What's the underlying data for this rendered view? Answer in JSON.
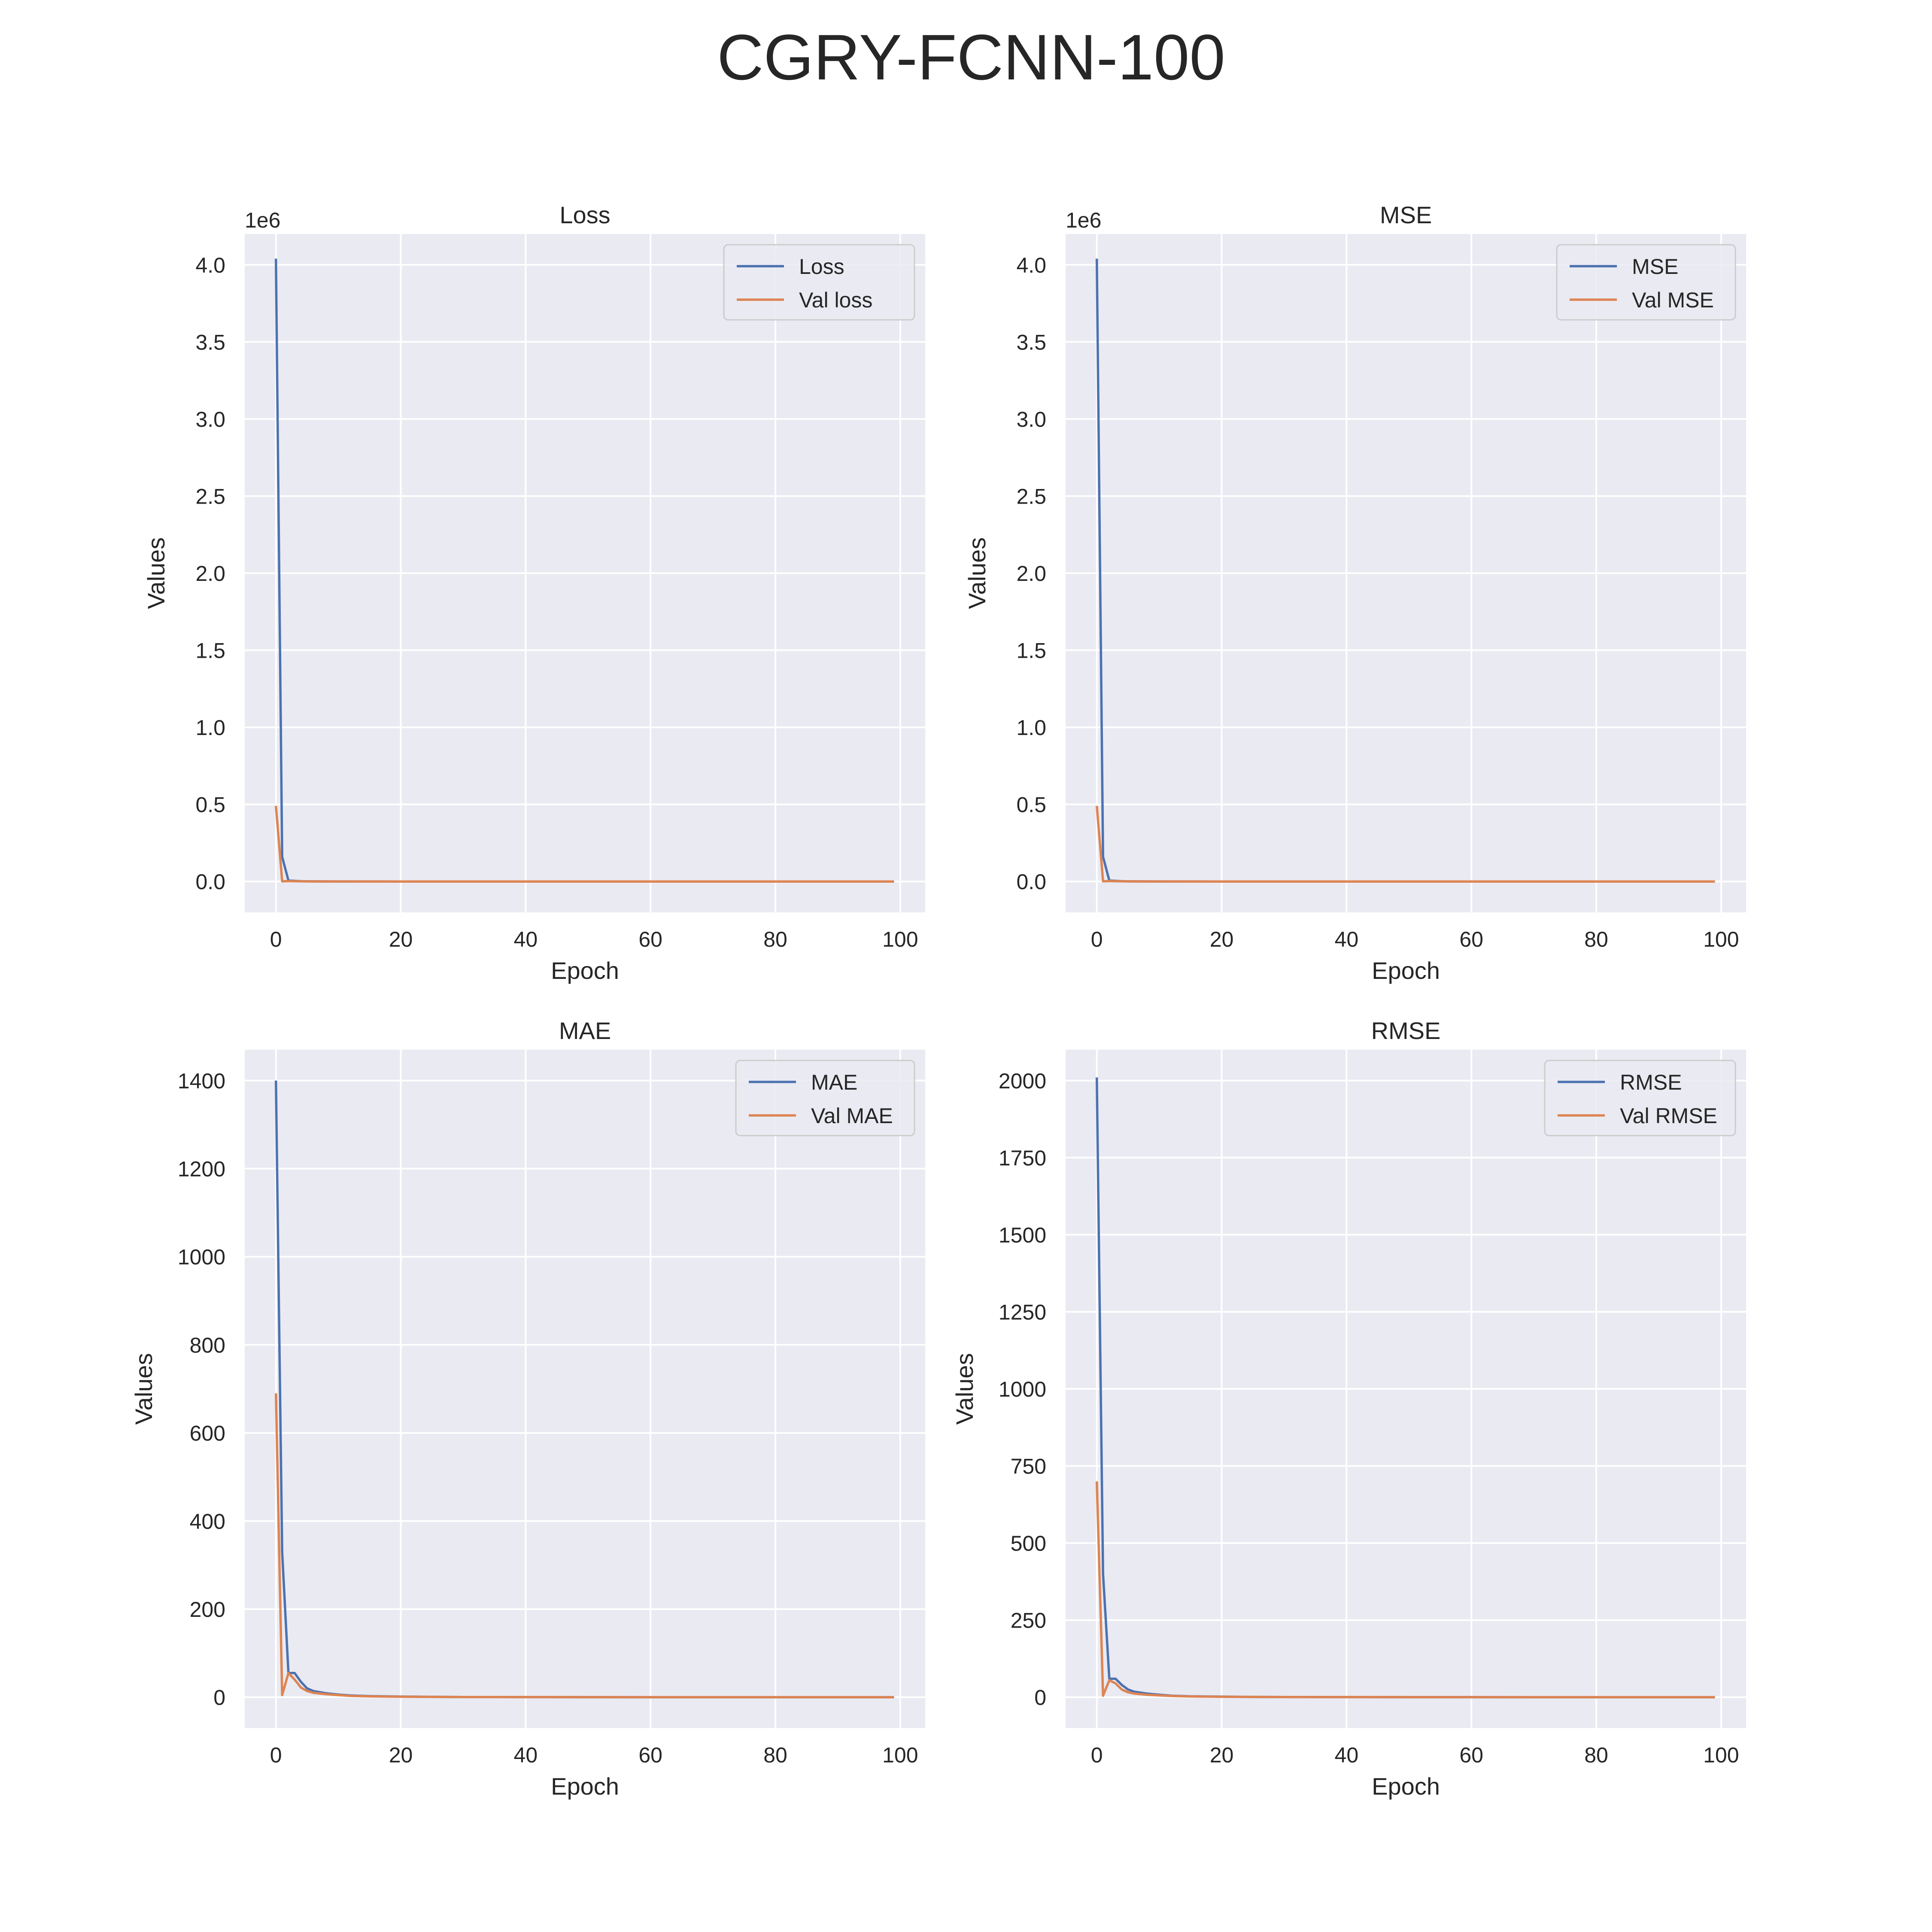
{
  "figure": {
    "title": "CGRY-FCNN-100"
  },
  "colors": {
    "series1": "#4c72b0",
    "series2": "#dd8452",
    "panel_bg": "#eaeaf2",
    "grid": "#ffffff",
    "text": "#262626"
  },
  "chart_data": [
    {
      "type": "line",
      "title": "Loss",
      "xlabel": "Epoch",
      "ylabel": "Values",
      "offset_text": "1e6",
      "xlim": [
        -5,
        104
      ],
      "ylim": [
        -0.2,
        4.2
      ],
      "xticks": [
        0,
        20,
        40,
        60,
        80,
        100
      ],
      "xtick_labels": [
        "0",
        "20",
        "40",
        "60",
        "80",
        "100"
      ],
      "yticks": [
        0,
        0.5,
        1.0,
        1.5,
        2.0,
        2.5,
        3.0,
        3.5,
        4.0
      ],
      "ytick_labels": [
        "0.0",
        "0.5",
        "1.0",
        "1.5",
        "2.0",
        "2.5",
        "3.0",
        "3.5",
        "4.0"
      ],
      "grid": true,
      "legend": "upper right",
      "x": [
        0,
        1,
        2,
        3,
        4,
        5,
        6,
        8,
        10,
        15,
        20,
        30,
        40,
        50,
        60,
        70,
        80,
        90,
        99
      ],
      "series": [
        {
          "name": "Loss",
          "values": [
            4.04,
            0.16,
            0.006,
            0.004,
            0.002,
            0.001,
            0.0007,
            0.0004,
            0.0002,
            0.0001,
            0,
            0,
            0,
            0,
            0,
            0,
            0,
            0,
            0
          ]
        },
        {
          "name": "Val loss",
          "values": [
            0.49,
            0.001,
            0.003,
            0.002,
            0.001,
            0.0006,
            0.0004,
            0.0002,
            0.0001,
            0,
            0,
            0,
            0,
            0,
            0,
            0,
            0,
            0,
            0
          ]
        }
      ]
    },
    {
      "type": "line",
      "title": "MSE",
      "xlabel": "Epoch",
      "ylabel": "Values",
      "offset_text": "1e6",
      "xlim": [
        -5,
        104
      ],
      "ylim": [
        -0.2,
        4.2
      ],
      "xticks": [
        0,
        20,
        40,
        60,
        80,
        100
      ],
      "xtick_labels": [
        "0",
        "20",
        "40",
        "60",
        "80",
        "100"
      ],
      "yticks": [
        0,
        0.5,
        1.0,
        1.5,
        2.0,
        2.5,
        3.0,
        3.5,
        4.0
      ],
      "ytick_labels": [
        "0.0",
        "0.5",
        "1.0",
        "1.5",
        "2.0",
        "2.5",
        "3.0",
        "3.5",
        "4.0"
      ],
      "grid": true,
      "legend": "upper right",
      "x": [
        0,
        1,
        2,
        3,
        4,
        5,
        6,
        8,
        10,
        15,
        20,
        30,
        40,
        50,
        60,
        70,
        80,
        90,
        99
      ],
      "series": [
        {
          "name": "MSE",
          "values": [
            4.04,
            0.16,
            0.006,
            0.004,
            0.002,
            0.001,
            0.0007,
            0.0004,
            0.0002,
            0.0001,
            0,
            0,
            0,
            0,
            0,
            0,
            0,
            0,
            0
          ]
        },
        {
          "name": "Val MSE",
          "values": [
            0.49,
            0.001,
            0.003,
            0.002,
            0.001,
            0.0006,
            0.0004,
            0.0002,
            0.0001,
            0,
            0,
            0,
            0,
            0,
            0,
            0,
            0,
            0,
            0
          ]
        }
      ]
    },
    {
      "type": "line",
      "title": "MAE",
      "xlabel": "Epoch",
      "ylabel": "Values",
      "offset_text": "",
      "xlim": [
        -5,
        104
      ],
      "ylim": [
        -70,
        1470
      ],
      "xticks": [
        0,
        20,
        40,
        60,
        80,
        100
      ],
      "xtick_labels": [
        "0",
        "20",
        "40",
        "60",
        "80",
        "100"
      ],
      "yticks": [
        0,
        200,
        400,
        600,
        800,
        1000,
        1200,
        1400
      ],
      "ytick_labels": [
        "0",
        "200",
        "400",
        "600",
        "800",
        "1000",
        "1200",
        "1400"
      ],
      "grid": true,
      "legend": "upper right",
      "x": [
        0,
        1,
        2,
        3,
        4,
        5,
        6,
        8,
        10,
        12,
        15,
        20,
        25,
        30,
        40,
        50,
        60,
        70,
        80,
        90,
        99
      ],
      "series": [
        {
          "name": "MAE",
          "values": [
            1400,
            330,
            55,
            55,
            35,
            20,
            14,
            9,
            6,
            4,
            2.5,
            1.5,
            1,
            0.5,
            0.3,
            0.2,
            0.1,
            0.1,
            0.1,
            0.1,
            0.1
          ]
        },
        {
          "name": "Val MAE",
          "values": [
            690,
            5,
            55,
            40,
            22,
            14,
            10,
            7,
            5,
            3,
            2,
            1.2,
            0.8,
            0.5,
            0.3,
            0.2,
            0.1,
            0.1,
            0.1,
            0.1,
            0.1
          ]
        }
      ]
    },
    {
      "type": "line",
      "title": "RMSE",
      "xlabel": "Epoch",
      "ylabel": "Values",
      "offset_text": "",
      "xlim": [
        -5,
        104
      ],
      "ylim": [
        -100,
        2100
      ],
      "xticks": [
        0,
        20,
        40,
        60,
        80,
        100
      ],
      "xtick_labels": [
        "0",
        "20",
        "40",
        "60",
        "80",
        "100"
      ],
      "yticks": [
        0,
        250,
        500,
        750,
        1000,
        1250,
        1500,
        1750,
        2000
      ],
      "ytick_labels": [
        "0",
        "250",
        "500",
        "750",
        "1000",
        "1250",
        "1500",
        "1750",
        "2000"
      ],
      "grid": true,
      "legend": "upper right",
      "x": [
        0,
        1,
        2,
        3,
        4,
        5,
        6,
        8,
        10,
        12,
        15,
        20,
        25,
        30,
        40,
        50,
        60,
        70,
        80,
        90,
        99
      ],
      "series": [
        {
          "name": "RMSE",
          "values": [
            2010,
            400,
            60,
            60,
            40,
            25,
            18,
            12,
            8,
            5,
            3,
            2,
            1,
            0.7,
            0.4,
            0.3,
            0.2,
            0.1,
            0.1,
            0.1,
            0.1
          ]
        },
        {
          "name": "Val RMSE",
          "values": [
            700,
            5,
            55,
            45,
            25,
            16,
            12,
            8,
            6,
            4,
            2.5,
            1.5,
            1,
            0.6,
            0.4,
            0.3,
            0.2,
            0.1,
            0.1,
            0.1,
            0.1
          ]
        }
      ]
    }
  ]
}
